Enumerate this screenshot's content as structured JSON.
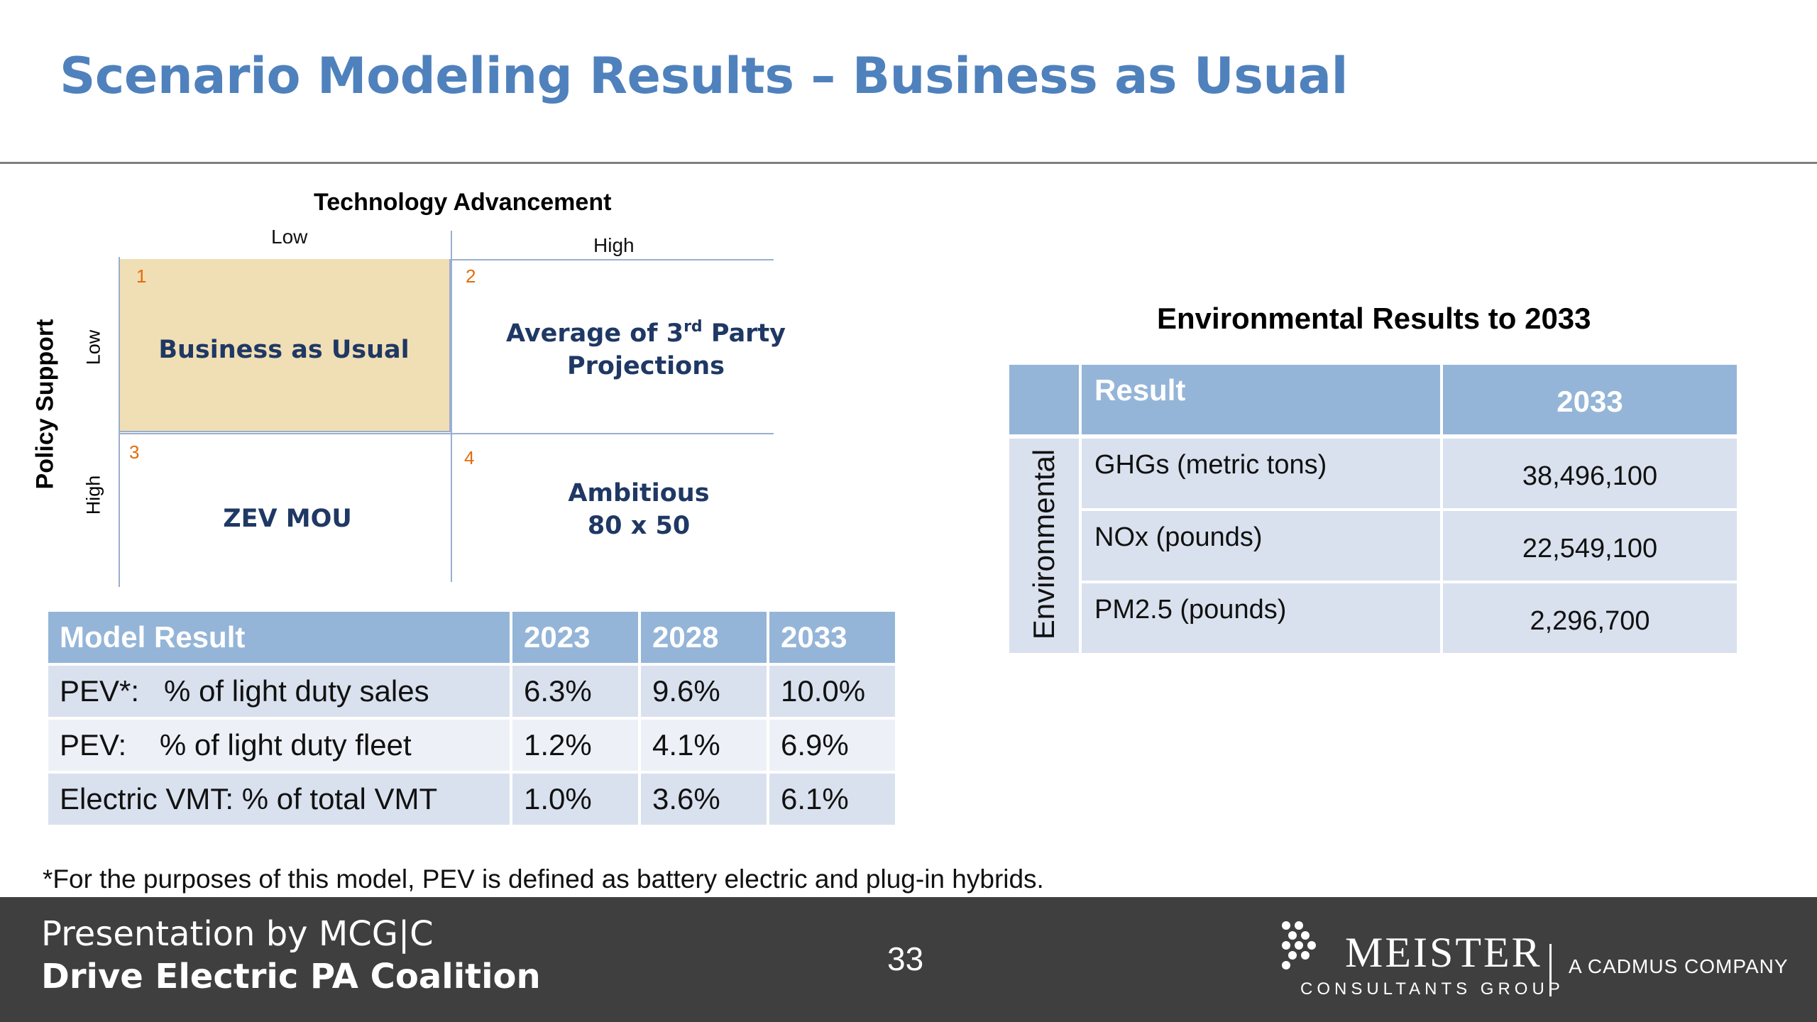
{
  "slide": {
    "title": "Scenario Modeling Results – Business as Usual",
    "page_number": "33"
  },
  "matrix": {
    "title": "Technology Advancement",
    "tech_low": "Low",
    "tech_high": "High",
    "policy_axis": "Policy Support",
    "policy_low": "Low",
    "policy_high": "High",
    "cells": [
      {
        "number": "1",
        "line1": "Business as Usual",
        "line2": ""
      },
      {
        "number": "2",
        "line1_pre": "Average of 3",
        "line1_sup": "rd",
        "line1_post": " Party",
        "line2": "Projections"
      },
      {
        "number": "3",
        "line1": "ZEV MOU",
        "line2": ""
      },
      {
        "number": "4",
        "line1": "Ambitious",
        "line2": "80 x 50"
      }
    ],
    "highlight_color": "#f0deb4"
  },
  "model_table": {
    "headers": [
      "Model Result",
      "2023",
      "2028",
      "2033"
    ],
    "rows": [
      [
        "PEV*:   % of light duty sales",
        "6.3%",
        "9.6%",
        "10.0%"
      ],
      [
        "PEV:    % of light duty fleet",
        "1.2%",
        "4.1%",
        "6.9%"
      ],
      [
        "Electric VMT: % of total VMT",
        "1.0%",
        "3.6%",
        "6.1%"
      ]
    ]
  },
  "env_table": {
    "title": "Environmental Results to 2033",
    "header_result": "Result",
    "header_year": "2033",
    "side_label": "Environmental",
    "rows": [
      {
        "label": "GHGs (metric tons)",
        "value": "38,496,100"
      },
      {
        "label": "NOx (pounds)",
        "value": "22,549,100"
      },
      {
        "label": "PM2.5 (pounds)",
        "value": "2,296,700"
      }
    ]
  },
  "footnote": "*For the purposes of this model, PEV is defined as battery electric and plug-in hybrids.",
  "footer": {
    "line1": "Presentation by MCG|C",
    "line2": "Drive Electric PA Coalition",
    "logo_name": "MEISTER",
    "logo_sub": "CONSULTANTS GROUP",
    "cadmus": "A CADMUS COMPANY"
  },
  "colors": {
    "title": "#4f81bd",
    "table_header": "#94b5d8",
    "table_row": "#d9e1ee",
    "footer_bg": "#3f3f3f",
    "cell_number": "#e36c09",
    "cell_text": "#1f3864"
  }
}
